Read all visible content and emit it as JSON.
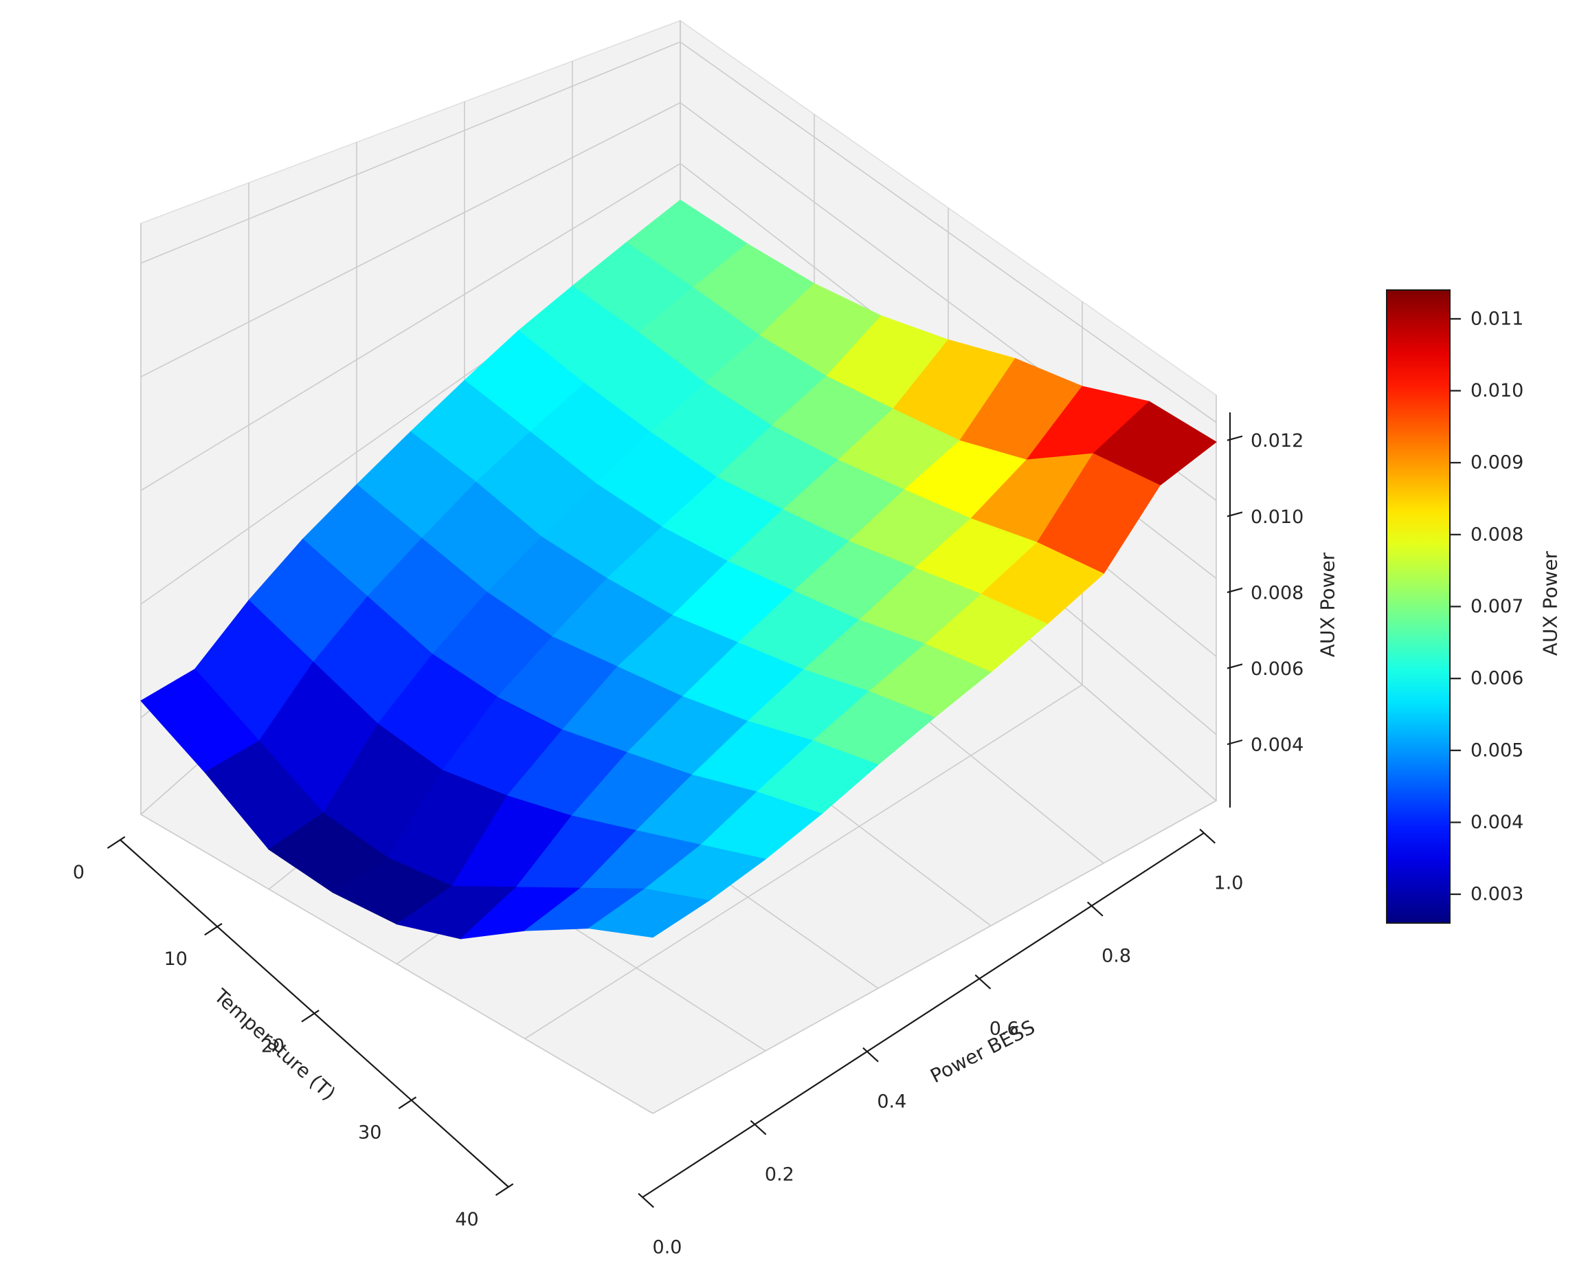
{
  "figure": {
    "background": "#ffffff",
    "text_color": "#262626",
    "pane_color": "#f2f2f2",
    "grid_color": "#cbcbcb",
    "axis_line_color": "#1a1a1a"
  },
  "chart_data": {
    "type": "surface3d",
    "title": "",
    "xlabel": "Temperature (T)",
    "ylabel": "Power BESS",
    "zlabel": "AUX Power",
    "colormap": "jet",
    "x_values": [
      0,
      5,
      10,
      15,
      20,
      25,
      30,
      35,
      40
    ],
    "y_values": [
      0.0,
      0.1,
      0.2,
      0.3,
      0.4,
      0.5,
      0.6,
      0.7,
      0.8,
      0.9,
      1.0
    ],
    "z_grid": [
      [
        0.0043,
        0.0037,
        0.003,
        0.0029,
        0.003,
        0.0034,
        0.0042,
        0.0049,
        0.0054
      ],
      [
        0.0041,
        0.0035,
        0.0029,
        0.0028,
        0.003,
        0.0037,
        0.0044,
        0.0051,
        0.0056
      ],
      [
        0.0046,
        0.0042,
        0.0038,
        0.0037,
        0.004,
        0.0044,
        0.0049,
        0.0054,
        0.0059
      ],
      [
        0.005,
        0.0047,
        0.0044,
        0.0044,
        0.0046,
        0.005,
        0.0054,
        0.0059,
        0.0063
      ],
      [
        0.0053,
        0.0051,
        0.0049,
        0.0049,
        0.0052,
        0.0055,
        0.0059,
        0.0064,
        0.0068
      ],
      [
        0.0056,
        0.0055,
        0.0053,
        0.0054,
        0.0056,
        0.006,
        0.0064,
        0.0069,
        0.0073
      ],
      [
        0.0059,
        0.0058,
        0.0057,
        0.0058,
        0.0061,
        0.0065,
        0.0069,
        0.0074,
        0.0078
      ],
      [
        0.0062,
        0.0061,
        0.0061,
        0.0062,
        0.0066,
        0.007,
        0.0075,
        0.008,
        0.0084
      ],
      [
        0.0064,
        0.0065,
        0.0065,
        0.0067,
        0.0071,
        0.0076,
        0.0081,
        0.0087,
        0.0091
      ],
      [
        0.0066,
        0.0068,
        0.0069,
        0.0072,
        0.0077,
        0.0082,
        0.009,
        0.0104,
        0.0108
      ],
      [
        0.0068,
        0.0071,
        0.0075,
        0.0081,
        0.0089,
        0.0098,
        0.0104,
        0.0113,
        0.0115
      ]
    ],
    "x_tick_labels": [
      "0",
      "10",
      "20",
      "30",
      "40"
    ],
    "y_tick_labels": [
      "0.0",
      "0.2",
      "0.4",
      "0.6",
      "0.8",
      "1.0"
    ],
    "z_tick_values": [
      0.004,
      0.006,
      0.008,
      0.01,
      0.012
    ],
    "z_tick_labels": [
      "0.004",
      "0.006",
      "0.008",
      "0.010",
      "0.012"
    ],
    "zlim": [
      0.0023,
      0.0127
    ],
    "color_range": [
      0.0028,
      0.0115
    ],
    "colorbar": {
      "label": "AUX Power",
      "vmin": 0.0026,
      "vmax": 0.0114,
      "tick_values": [
        0.003,
        0.004,
        0.005,
        0.006,
        0.007,
        0.008,
        0.009,
        0.01,
        0.011
      ],
      "tick_labels": [
        "0.003",
        "0.004",
        "0.005",
        "0.006",
        "0.007",
        "0.008",
        "0.009",
        "0.010",
        "0.011"
      ]
    }
  }
}
